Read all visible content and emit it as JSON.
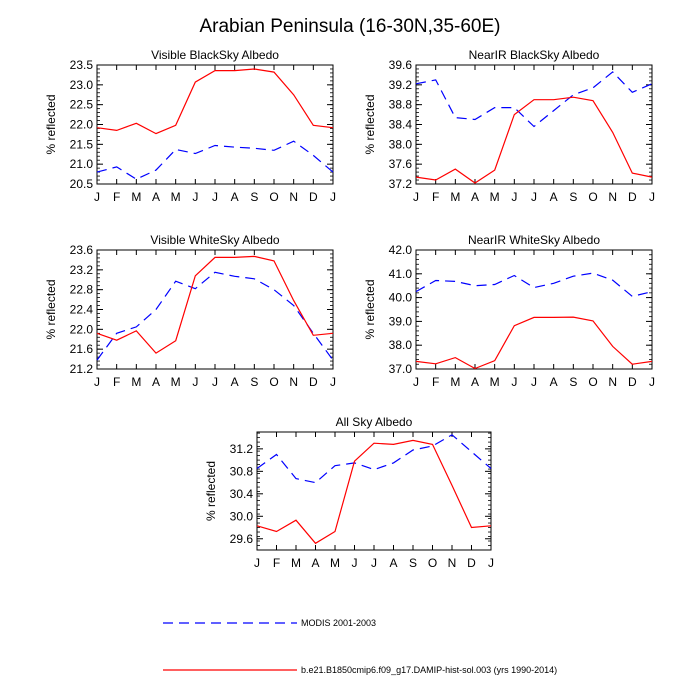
{
  "figure": {
    "title": "Arabian Peninsula (16-30N,35-60E)",
    "legend": [
      {
        "label": "MODIS 2001-2003",
        "color": "#0000ff",
        "dash": "dashed"
      },
      {
        "label": "b.e21.B1850cmip6.f09_g17.DAMIP-hist-sol.003 (yrs 1990-2014)",
        "color": "#ff0000",
        "dash": "solid"
      }
    ],
    "months": [
      "J",
      "F",
      "M",
      "A",
      "M",
      "J",
      "J",
      "A",
      "S",
      "O",
      "N",
      "D",
      "J"
    ]
  },
  "chart_data": [
    {
      "type": "line",
      "title": "Visible BlackSky Albedo",
      "ylabel": "% reflected",
      "ylim": [
        20.5,
        23.5
      ],
      "yticks": [
        20.5,
        21.0,
        21.5,
        22.0,
        22.5,
        23.0,
        23.5
      ],
      "tick_decimals": 1,
      "series": [
        {
          "name": "MODIS 2001-2003",
          "values": [
            20.8,
            20.93,
            20.62,
            20.85,
            21.37,
            21.27,
            21.47,
            21.43,
            21.4,
            21.35,
            21.58,
            21.22,
            20.8
          ]
        },
        {
          "name": "b.e21.B1850cmip6.f09_g17.DAMIP-hist-sol.003 (yrs 1990-2014)",
          "values": [
            21.92,
            21.85,
            22.03,
            21.77,
            21.98,
            23.07,
            23.36,
            23.36,
            23.4,
            23.32,
            22.75,
            21.98,
            21.92
          ]
        }
      ]
    },
    {
      "type": "line",
      "title": "NearIR BlackSky Albedo",
      "ylabel": "% reflected",
      "ylim": [
        37.2,
        39.6
      ],
      "yticks": [
        37.2,
        37.6,
        38.0,
        38.4,
        38.8,
        39.2,
        39.6
      ],
      "tick_decimals": 1,
      "series": [
        {
          "name": "MODIS 2001-2003",
          "values": [
            39.22,
            39.3,
            38.54,
            38.5,
            38.74,
            38.74,
            38.36,
            38.68,
            39.0,
            39.14,
            39.46,
            39.05,
            39.22
          ]
        },
        {
          "name": "b.e21.B1850cmip6.f09_g17.DAMIP-hist-sol.003 (yrs 1990-2014)",
          "values": [
            37.34,
            37.28,
            37.5,
            37.22,
            37.48,
            38.6,
            38.9,
            38.9,
            38.95,
            38.88,
            38.24,
            37.42,
            37.34
          ]
        }
      ]
    },
    {
      "type": "line",
      "title": "Visible WhiteSky Albedo",
      "ylabel": "% reflected",
      "ylim": [
        21.2,
        23.6
      ],
      "yticks": [
        21.2,
        21.6,
        22.0,
        22.4,
        22.8,
        23.2,
        23.6
      ],
      "tick_decimals": 1,
      "series": [
        {
          "name": "MODIS 2001-2003",
          "values": [
            21.38,
            21.92,
            22.05,
            22.4,
            22.97,
            22.82,
            23.15,
            23.07,
            23.02,
            22.8,
            22.48,
            21.92,
            21.38
          ]
        },
        {
          "name": "b.e21.B1850cmip6.f09_g17.DAMIP-hist-sol.003 (yrs 1990-2014)",
          "values": [
            21.92,
            21.78,
            21.97,
            21.52,
            21.77,
            23.08,
            23.45,
            23.45,
            23.47,
            23.38,
            22.58,
            21.88,
            21.92
          ]
        }
      ]
    },
    {
      "type": "line",
      "title": "NearIR WhiteSky Albedo",
      "ylabel": "% reflected",
      "ylim": [
        37.0,
        42.0
      ],
      "yticks": [
        37.0,
        38.0,
        39.0,
        40.0,
        41.0,
        42.0
      ],
      "tick_decimals": 1,
      "series": [
        {
          "name": "MODIS 2001-2003",
          "values": [
            40.25,
            40.72,
            40.68,
            40.5,
            40.55,
            40.93,
            40.42,
            40.6,
            40.9,
            41.03,
            40.73,
            40.05,
            40.25
          ]
        },
        {
          "name": "b.e21.B1850cmip6.f09_g17.DAMIP-hist-sol.003 (yrs 1990-2014)",
          "values": [
            37.32,
            37.22,
            37.48,
            37.02,
            37.35,
            38.82,
            39.17,
            39.17,
            39.18,
            39.02,
            37.95,
            37.2,
            37.32
          ]
        }
      ]
    },
    {
      "type": "line",
      "title": "All Sky Albedo",
      "ylabel": "% reflected",
      "ylim": [
        29.4,
        31.5
      ],
      "yticks": [
        29.6,
        30.0,
        30.4,
        30.8,
        31.2
      ],
      "tick_decimals": 1,
      "series": [
        {
          "name": "MODIS 2001-2003",
          "values": [
            30.85,
            31.1,
            30.67,
            30.6,
            30.9,
            30.95,
            30.83,
            30.95,
            31.18,
            31.25,
            31.45,
            31.15,
            30.85
          ]
        },
        {
          "name": "b.e21.B1850cmip6.f09_g17.DAMIP-hist-sol.003 (yrs 1990-2014)",
          "values": [
            29.83,
            29.73,
            29.93,
            29.52,
            29.73,
            30.98,
            31.3,
            31.28,
            31.35,
            31.28,
            30.55,
            29.8,
            29.83
          ]
        }
      ]
    }
  ]
}
